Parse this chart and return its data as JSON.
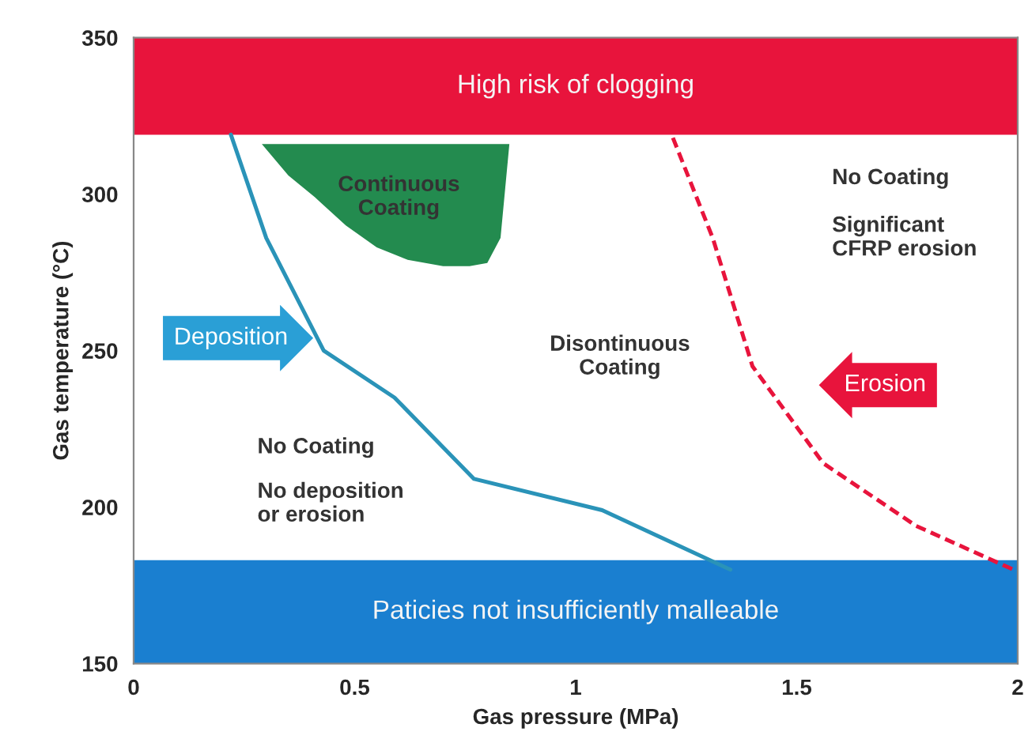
{
  "chart_data": {
    "type": "line",
    "xlabel": "Gas pressure (MPa)",
    "ylabel": "Gas temperature (°C)",
    "xlim": [
      0,
      2
    ],
    "ylim": [
      150,
      350
    ],
    "xticks": [
      0,
      0.5,
      1,
      1.5,
      2
    ],
    "yticks": [
      150,
      200,
      250,
      300,
      350
    ],
    "grid": false,
    "legend": false,
    "bands": [
      {
        "axis": "y",
        "from": 319,
        "to": 350,
        "label": "High risk of clogging",
        "color": "#e8143c"
      },
      {
        "axis": "y",
        "from": 150,
        "to": 183,
        "label": "Paticies not insufficiently malleable",
        "color": "#1a7fd0"
      }
    ],
    "series": [
      {
        "type": "area",
        "color": "#238b4f",
        "x": [
          0.29,
          0.35,
          0.41,
          0.48,
          0.55,
          0.62,
          0.7,
          0.76,
          0.8,
          0.83,
          0.85
        ],
        "values": [
          316,
          306,
          299,
          290,
          283,
          279,
          277,
          277,
          278,
          286,
          316
        ]
      },
      {
        "color": "#2a93b8",
        "line_style": "solid",
        "x": [
          0.22,
          0.3,
          0.43,
          0.59,
          0.77,
          1.06,
          1.35
        ],
        "values": [
          319,
          286,
          250,
          235,
          209,
          199,
          180
        ]
      },
      {
        "color": "#e8143c",
        "line_style": "dashed",
        "x": [
          1.22,
          1.31,
          1.4,
          1.56,
          1.77,
          1.99
        ],
        "values": [
          318,
          286,
          245,
          214,
          194,
          180
        ]
      }
    ],
    "annotations": [
      "Continuous\nCoating",
      "Disontinuous\nCoating",
      "No Coating",
      "No deposition\nor erosion",
      "No Coating",
      "Significant\nCFRP erosion",
      "Deposition",
      "Erosion"
    ]
  }
}
